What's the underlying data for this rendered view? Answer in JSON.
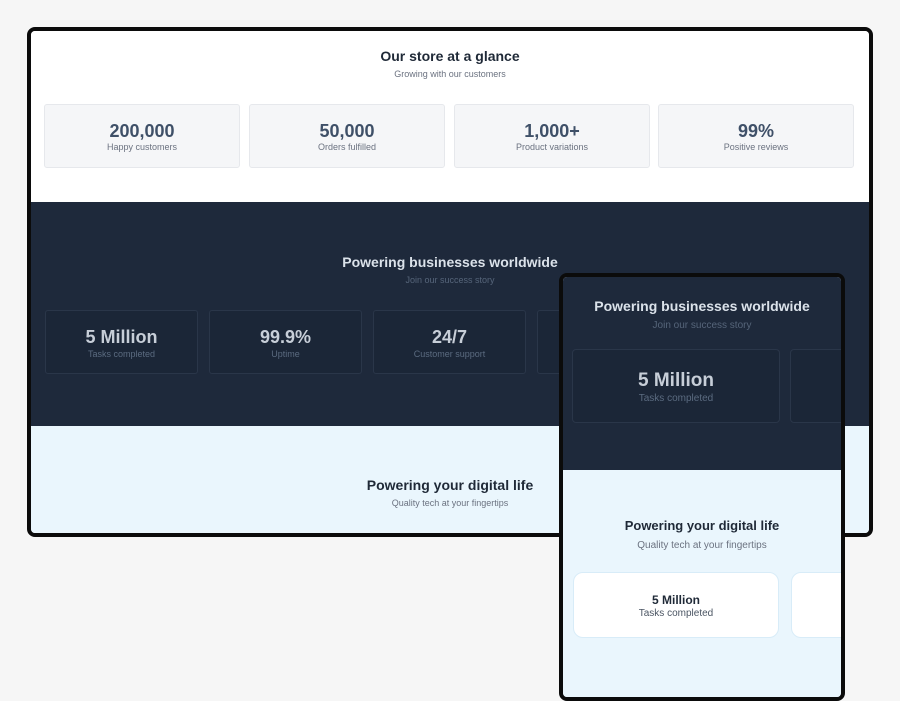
{
  "store": {
    "title": "Our store at a glance",
    "subtitle": "Growing with our customers",
    "stats": [
      {
        "value": "200,000",
        "label": "Happy customers"
      },
      {
        "value": "50,000",
        "label": "Orders fulfilled"
      },
      {
        "value": "1,000+",
        "label": "Product variations"
      },
      {
        "value": "99%",
        "label": "Positive reviews"
      }
    ]
  },
  "business": {
    "title": "Powering businesses worldwide",
    "subtitle": "Join our success story",
    "stats": [
      {
        "value": "5 Million",
        "label": "Tasks completed"
      },
      {
        "value": "99.9%",
        "label": "Uptime"
      },
      {
        "value": "24/7",
        "label": "Customer support"
      }
    ]
  },
  "digital": {
    "title": "Powering your digital life",
    "subtitle": "Quality tech at your fingertips",
    "stats": [
      {
        "value": "5 Million",
        "label": "Tasks completed"
      }
    ]
  },
  "colors": {
    "dark_section": "#1e293b",
    "light_blue_section": "#eaf6fd",
    "stat_value_light": "#3f5068"
  }
}
